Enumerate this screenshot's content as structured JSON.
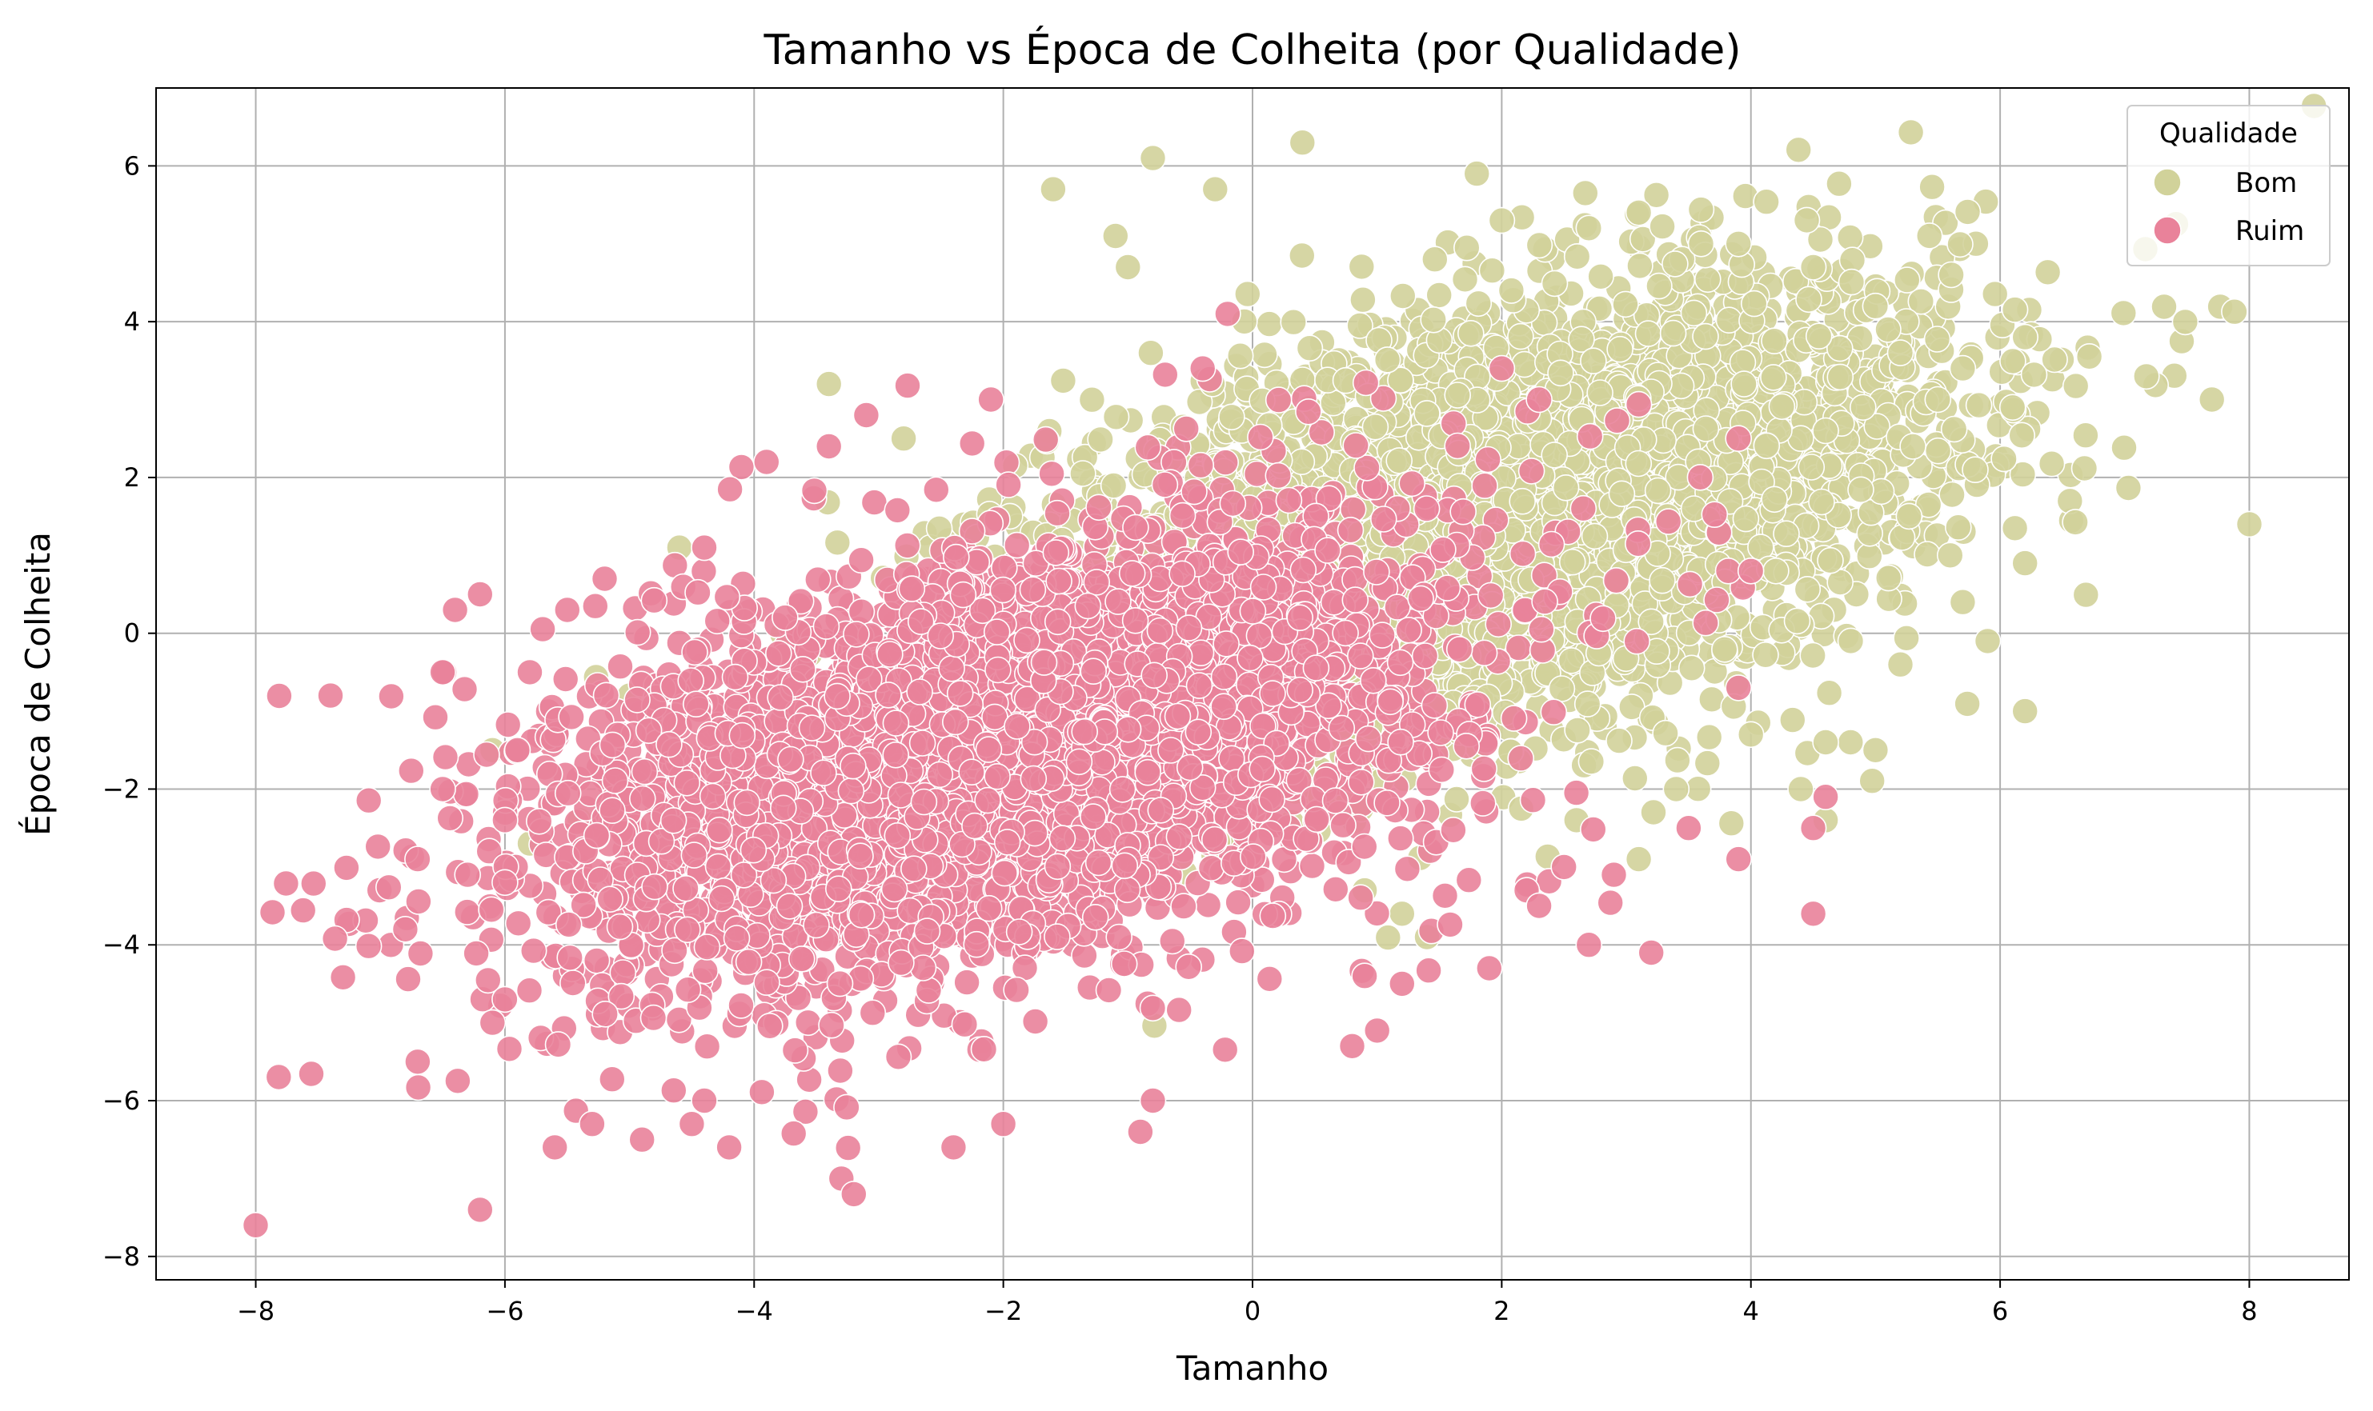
{
  "chart_data": {
    "type": "scatter",
    "title": "Tamanho vs Época de Colheita (por Qualidade)",
    "xlabel": "Tamanho",
    "ylabel": "Época de Colheita",
    "xlim": [
      -8.8,
      8.8
    ],
    "ylim": [
      -8.3,
      7.0
    ],
    "xticks": [
      -8,
      -6,
      -4,
      -2,
      0,
      2,
      4,
      6,
      8
    ],
    "yticks": [
      -8,
      -6,
      -4,
      -2,
      0,
      2,
      4,
      6
    ],
    "xtick_labels": [
      "−8",
      "−6",
      "−4",
      "−2",
      "0",
      "2",
      "4",
      "6",
      "8"
    ],
    "ytick_labels": [
      "−8",
      "−6",
      "−4",
      "−2",
      "0",
      "2",
      "4",
      "6"
    ],
    "grid": true,
    "legend": {
      "title": "Qualidade",
      "placement": "top-right",
      "entries": [
        {
          "label": "Bom",
          "color": "#d1d29a"
        },
        {
          "label": "Ruim",
          "color": "#e9829a"
        }
      ]
    },
    "series": [
      {
        "name": "Bom",
        "color": "#d1d29a",
        "count": 4000,
        "center": [
          2.0,
          1.5
        ],
        "spread": [
          1.8,
          1.8
        ],
        "points": [
          [
            7.7,
            3.0
          ],
          [
            8.0,
            1.4
          ],
          [
            6.2,
            3.8
          ],
          [
            6.1,
            2.9
          ],
          [
            6.2,
            0.9
          ],
          [
            6.2,
            -1.0
          ],
          [
            5.9,
            -0.1
          ],
          [
            5.8,
            2.1
          ],
          [
            5.7,
            3.4
          ],
          [
            5.5,
            3.0
          ],
          [
            5.3,
            2.4
          ],
          [
            5.2,
            3.6
          ],
          [
            5.0,
            4.2
          ],
          [
            5.1,
            3.9
          ],
          [
            4.9,
            2.9
          ],
          [
            5.0,
            -1.5
          ],
          [
            5.2,
            -0.4
          ],
          [
            4.8,
            -1.4
          ],
          [
            4.6,
            -1.4
          ],
          [
            4.4,
            -2.0
          ],
          [
            4.6,
            -2.4
          ],
          [
            4.5,
            4.7
          ],
          [
            3.9,
            5.0
          ],
          [
            3.6,
            5.0
          ],
          [
            3.1,
            5.4
          ],
          [
            2.7,
            5.2
          ],
          [
            2.0,
            5.3
          ],
          [
            1.8,
            5.9
          ],
          [
            0.4,
            6.3
          ],
          [
            -0.8,
            6.1
          ],
          [
            -0.3,
            5.7
          ],
          [
            -1.6,
            5.7
          ],
          [
            -1.1,
            5.1
          ],
          [
            -1.0,
            4.7
          ],
          [
            -3.4,
            3.2
          ],
          [
            -2.8,
            2.5
          ],
          [
            -4.6,
            1.1
          ],
          [
            -5.0,
            -0.8
          ],
          [
            -6.1,
            -1.5
          ],
          [
            -5.8,
            -2.7
          ],
          [
            -5.4,
            -2.4
          ],
          [
            3.1,
            -2.9
          ],
          [
            3.4,
            -2.0
          ],
          [
            1.2,
            -3.6
          ],
          [
            1.4,
            -3.9
          ],
          [
            0.9,
            -3.3
          ],
          [
            2.6,
            -2.4
          ],
          [
            4.0,
            -1.3
          ],
          [
            4.2,
            0.8
          ],
          [
            4.6,
            2.6
          ],
          [
            5.6,
            1.0
          ],
          [
            5.7,
            0.4
          ]
        ]
      },
      {
        "name": "Ruim",
        "color": "#e9829a",
        "count": 4000,
        "center": [
          -2.0,
          -1.5
        ],
        "spread": [
          1.8,
          1.8
        ],
        "points": [
          [
            -8.0,
            -7.6
          ],
          [
            -7.4,
            -0.8
          ],
          [
            -6.8,
            -3.8
          ],
          [
            -6.7,
            -5.5
          ],
          [
            -6.7,
            -2.9
          ],
          [
            -6.5,
            -2.0
          ],
          [
            -6.5,
            -0.5
          ],
          [
            -6.4,
            0.3
          ],
          [
            -6.3,
            -3.1
          ],
          [
            -6.2,
            0.5
          ],
          [
            -6.2,
            -7.4
          ],
          [
            -6.1,
            -5.0
          ],
          [
            -6.0,
            -4.7
          ],
          [
            -6.0,
            -3.2
          ],
          [
            -6.0,
            -2.4
          ],
          [
            -5.9,
            -1.5
          ],
          [
            -5.8,
            -0.5
          ],
          [
            -5.6,
            -6.6
          ],
          [
            -5.3,
            -6.3
          ],
          [
            -4.9,
            -6.5
          ],
          [
            -4.5,
            -6.3
          ],
          [
            -4.4,
            -6.0
          ],
          [
            -4.2,
            -6.6
          ],
          [
            -3.3,
            -7.0
          ],
          [
            -3.2,
            -7.2
          ],
          [
            -2.4,
            -6.6
          ],
          [
            -2.0,
            -6.3
          ],
          [
            -0.9,
            -6.4
          ],
          [
            -0.8,
            -6.0
          ],
          [
            0.8,
            -5.3
          ],
          [
            1.0,
            -5.1
          ],
          [
            0.9,
            -4.4
          ],
          [
            1.2,
            -4.5
          ],
          [
            1.9,
            -4.3
          ],
          [
            2.2,
            -3.3
          ],
          [
            2.3,
            -3.5
          ],
          [
            2.5,
            -3.0
          ],
          [
            2.7,
            -4.0
          ],
          [
            2.9,
            -3.1
          ],
          [
            3.2,
            -4.1
          ],
          [
            3.5,
            -2.5
          ],
          [
            3.9,
            -2.9
          ],
          [
            4.5,
            -3.6
          ],
          [
            4.5,
            -2.5
          ],
          [
            4.6,
            -2.1
          ],
          [
            3.9,
            -0.7
          ],
          [
            4.0,
            0.8
          ],
          [
            3.9,
            2.5
          ],
          [
            2.0,
            3.4
          ],
          [
            2.3,
            3.0
          ],
          [
            -0.2,
            4.1
          ],
          [
            -0.4,
            3.4
          ],
          [
            -2.1,
            3.0
          ],
          [
            -3.1,
            2.8
          ],
          [
            -3.4,
            2.4
          ],
          [
            -3.9,
            2.2
          ],
          [
            -4.4,
            1.1
          ],
          [
            -5.2,
            0.7
          ],
          [
            -5.5,
            0.3
          ]
        ]
      }
    ]
  }
}
